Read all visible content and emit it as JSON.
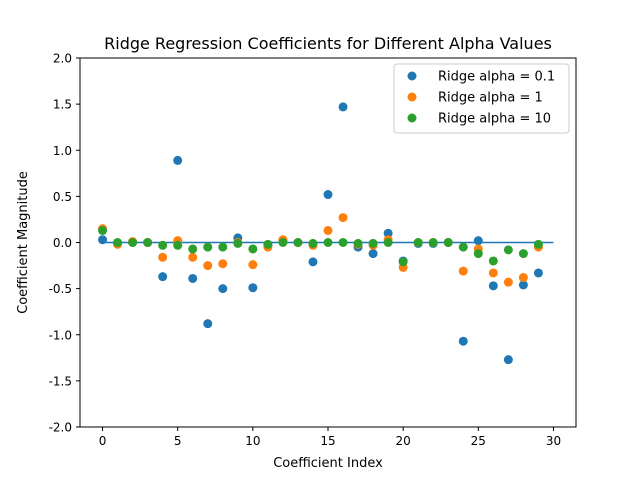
{
  "chart_data": {
    "type": "scatter",
    "title": "Ridge Regression Coefficients for Different Alpha Values",
    "xlabel": "Coefficient Index",
    "ylabel": "Coefficient Magnitude",
    "xlim": [
      -1.5,
      31.5
    ],
    "ylim": [
      -2.0,
      2.0
    ],
    "xticks": [
      "0",
      "5",
      "10",
      "15",
      "20",
      "25",
      "30"
    ],
    "yticks": [
      "-2.0",
      "-1.5",
      "-1.0",
      "-0.5",
      "0.0",
      "0.5",
      "1.0",
      "1.5",
      "2.0"
    ],
    "grid": false,
    "legend_position": "top-right",
    "zero_line": {
      "x": [
        0,
        30
      ],
      "y": 0,
      "color": "#1f77b4"
    },
    "series": [
      {
        "name": "Ridge alpha = 0.1",
        "color": "#1f77b4",
        "x": [
          0,
          1,
          2,
          3,
          4,
          5,
          6,
          7,
          8,
          9,
          10,
          11,
          12,
          13,
          14,
          15,
          16,
          17,
          18,
          19,
          20,
          21,
          22,
          23,
          24,
          25,
          26,
          27,
          28,
          29
        ],
        "y": [
          0.03,
          -0.01,
          0.0,
          0.0,
          -0.37,
          0.89,
          -0.39,
          -0.88,
          -0.5,
          0.05,
          -0.49,
          -0.03,
          0.02,
          0.0,
          -0.21,
          0.52,
          1.47,
          -0.05,
          -0.12,
          0.1,
          -0.2,
          -0.01,
          -0.01,
          0.0,
          -1.07,
          0.02,
          -0.47,
          -1.27,
          -0.46,
          -0.33
        ]
      },
      {
        "name": "Ridge alpha = 1",
        "color": "#ff7f0e",
        "x": [
          0,
          1,
          2,
          3,
          4,
          5,
          6,
          7,
          8,
          9,
          10,
          11,
          12,
          13,
          14,
          15,
          16,
          17,
          18,
          19,
          20,
          21,
          22,
          23,
          24,
          25,
          26,
          27,
          28,
          29
        ],
        "y": [
          0.15,
          -0.02,
          0.01,
          0.0,
          -0.16,
          0.02,
          -0.16,
          -0.25,
          -0.23,
          0.0,
          -0.24,
          -0.05,
          0.03,
          0.0,
          -0.03,
          0.13,
          0.27,
          -0.02,
          -0.03,
          0.03,
          -0.27,
          0.0,
          0.0,
          0.0,
          -0.31,
          -0.07,
          -0.33,
          -0.43,
          -0.38,
          -0.05
        ]
      },
      {
        "name": "Ridge alpha = 10",
        "color": "#2ca02c",
        "x": [
          0,
          1,
          2,
          3,
          4,
          5,
          6,
          7,
          8,
          9,
          10,
          11,
          12,
          13,
          14,
          15,
          16,
          17,
          18,
          19,
          20,
          21,
          22,
          23,
          24,
          25,
          26,
          27,
          28,
          29
        ],
        "y": [
          0.13,
          0.0,
          0.0,
          0.0,
          -0.03,
          -0.03,
          -0.07,
          -0.05,
          -0.05,
          -0.01,
          -0.07,
          -0.02,
          0.0,
          0.0,
          -0.01,
          0.0,
          0.0,
          -0.01,
          -0.01,
          0.0,
          -0.21,
          0.0,
          0.0,
          0.0,
          -0.05,
          -0.12,
          -0.2,
          -0.08,
          -0.12,
          -0.02
        ]
      }
    ]
  }
}
